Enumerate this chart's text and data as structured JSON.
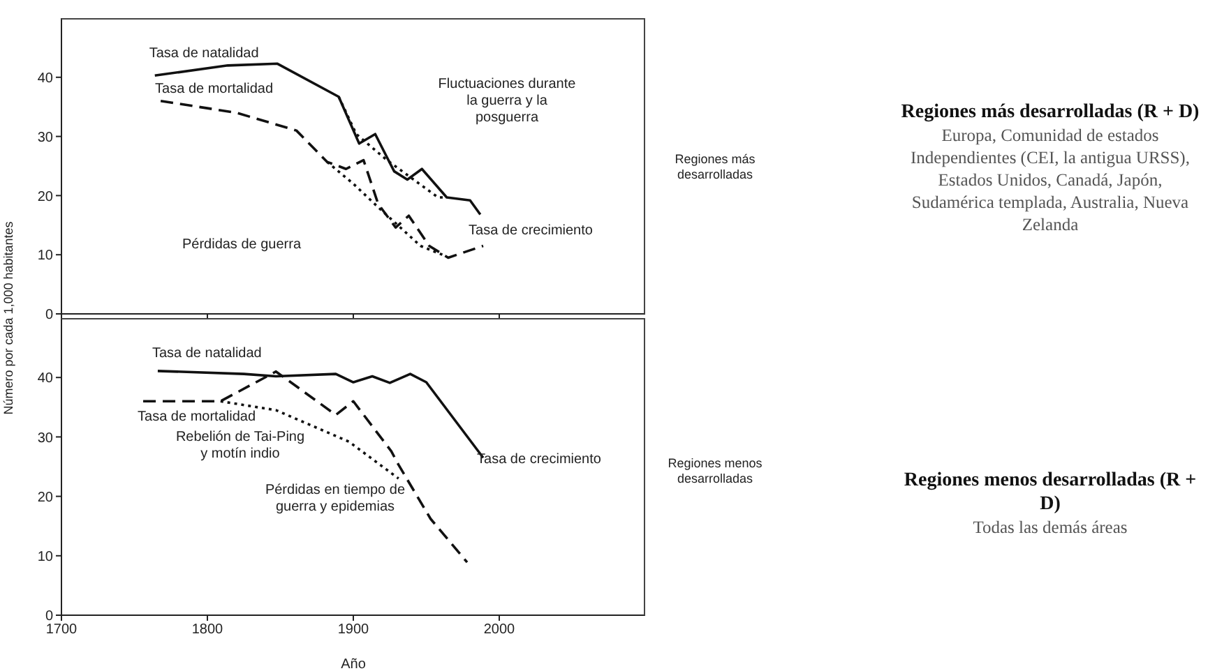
{
  "chart_data": [
    {
      "type": "line",
      "ylabel": "Número por cada 1,000 habitantes",
      "xlim": [
        1700,
        2100
      ],
      "xticks": [
        1700,
        1800,
        1900,
        2000
      ],
      "ylim": [
        0,
        50
      ],
      "yticks": [
        0,
        10,
        20,
        30,
        40
      ],
      "tick_labels": "y",
      "grid": false,
      "legend": false,
      "series": [
        {
          "name": "Tasa de natalidad",
          "color": "#111111",
          "line_style": "solid",
          "x": [
            1764,
            1814,
            1848,
            1890,
            1904,
            1915,
            1923,
            1928,
            1937,
            1947,
            1964,
            1980,
            1987
          ],
          "values": [
            40.3,
            42,
            42.3,
            36.7,
            28.8,
            30.4,
            26.5,
            24.1,
            22.7,
            24.5,
            19.7,
            19.2,
            16.8
          ]
        },
        {
          "name": "Tasa de mortalidad",
          "color": "#111111",
          "line_style": "dashed",
          "x": [
            1768,
            1820,
            1861,
            1882,
            1895,
            1907,
            1917,
            1929,
            1938,
            1952,
            1965,
            1989
          ],
          "values": [
            36,
            34,
            31,
            25.7,
            24.5,
            26,
            18.6,
            14.6,
            16.6,
            11.5,
            9.5,
            11.5
          ]
        },
        {
          "color": "#111111",
          "line_style": "dotted",
          "x": [
            1890,
            1902,
            1923,
            1958,
            1964
          ],
          "values": [
            36.7,
            30.4,
            26,
            19.7,
            19.7
          ]
        },
        {
          "color": "#111111",
          "line_style": "dotted",
          "x": [
            1882,
            1900,
            1918,
            1946,
            1961
          ],
          "values": [
            25.7,
            22,
            17.8,
            11.5,
            10
          ]
        }
      ],
      "annotations": [
        "Fluctuaciones durante la guerra y la posguerra",
        "Pérdidas de guerra",
        "Tasa de crecimiento",
        "Regiones más desarrolladas"
      ]
    },
    {
      "type": "line",
      "xlabel": "Año",
      "xlim": [
        1700,
        2100
      ],
      "xticks": [
        1700,
        1800,
        1900,
        2000
      ],
      "ylim": [
        0,
        50
      ],
      "yticks": [
        0,
        10,
        20,
        30,
        40
      ],
      "grid": false,
      "legend": false,
      "series": [
        {
          "name": "Tasa de natalidad",
          "color": "#111111",
          "line_style": "solid",
          "x": [
            1766,
            1825,
            1847,
            1888,
            1900,
            1913,
            1925,
            1939,
            1950,
            1989
          ],
          "values": [
            41.1,
            40.6,
            40.2,
            40.6,
            39.2,
            40.2,
            39.1,
            40.6,
            39.2,
            26.5
          ]
        },
        {
          "name": "Tasa de mortalidad",
          "color": "#111111",
          "line_style": "dashed",
          "x": [
            1756,
            1809,
            1847,
            1888,
            1900,
            1926,
            1931,
            1953,
            1978
          ],
          "values": [
            36,
            36,
            41,
            33.7,
            36,
            27.6,
            25.3,
            16.2,
            8.9
          ]
        },
        {
          "color": "#111111",
          "line_style": "dotted",
          "x": [
            1809,
            1847,
            1897,
            1931
          ],
          "values": [
            36,
            34.5,
            29.2,
            23
          ]
        }
      ],
      "annotations": [
        "Rebelión de Tai-Ping y motín indio",
        "Pérdidas en tiempo de guerra y epidemias",
        "Tasa de crecimiento",
        "Regiones menos desarrolladas"
      ]
    },
    {
      "type": "other",
      "title": "Regiones más desarrolladas (R + D)",
      "annotations": [
        "Europa, Comunidad de estados Independientes (CEI, la antigua URSS), Estados Unidos, Canadá, Japón, Sudamérica templada, Australia, Nueva Zelanda"
      ]
    },
    {
      "type": "other",
      "title": "Regiones menos desarrolladas (R + D)",
      "annotations": [
        "Todas las demás áreas"
      ]
    }
  ]
}
